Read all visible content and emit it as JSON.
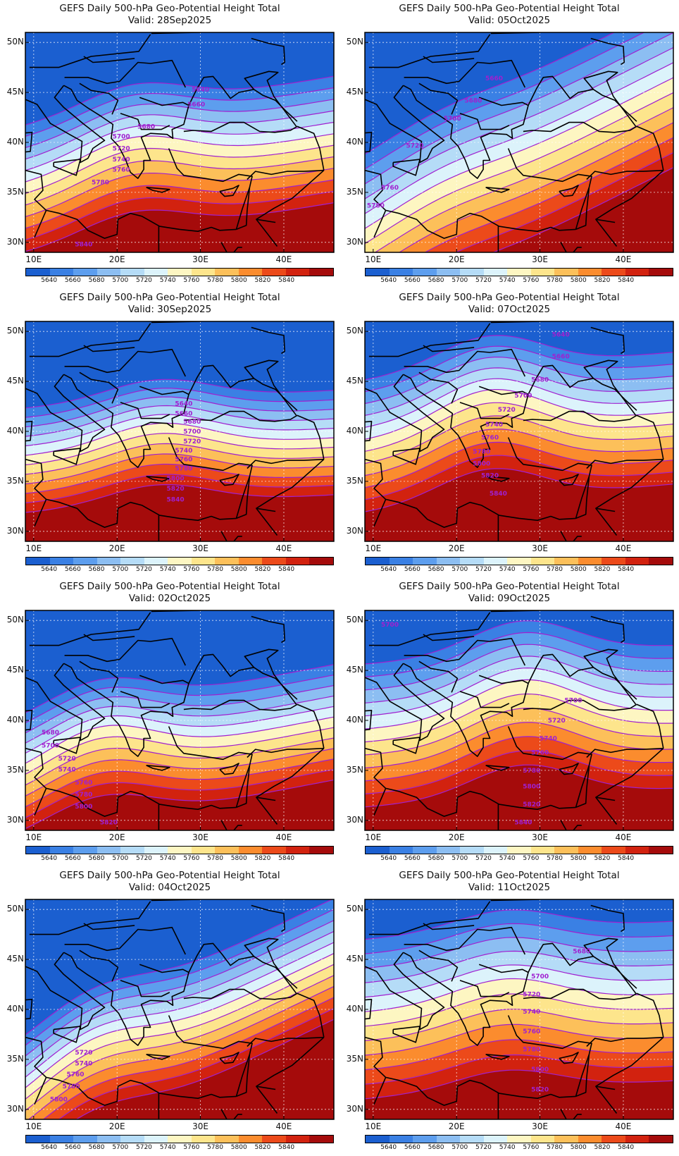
{
  "colorbar": {
    "levels": [
      "5640",
      "5660",
      "5680",
      "5700",
      "5720",
      "5740",
      "5760",
      "5780",
      "5800",
      "5820",
      "5840"
    ],
    "colors": [
      "#1b5fd0",
      "#3a80e4",
      "#5d9eee",
      "#8cbef2",
      "#b5dcf7",
      "#dcf3fb",
      "#fdf6c2",
      "#fde58c",
      "#fcc05a",
      "#fb8c2e",
      "#ec4a1a",
      "#d2220f",
      "#a50b0b"
    ]
  },
  "axes": {
    "lat_labels": [
      "50N",
      "45N",
      "40N",
      "35N",
      "30N"
    ],
    "lat_values": [
      50,
      45,
      40,
      35,
      30
    ],
    "lon_labels": [
      "10E",
      "20E",
      "30E",
      "40E"
    ],
    "lon_values": [
      10,
      20,
      30,
      40
    ],
    "lon_range": [
      9,
      46
    ],
    "lat_range": [
      29,
      51
    ]
  },
  "contour_color": "#a020d0",
  "panels": [
    {
      "title": "GEFS Daily 500-hPa Geo-Potential Height Total",
      "valid": "Valid: 28Sep2025",
      "trough_lon": 22,
      "trough_strength": 3,
      "base_lat": 38.2,
      "tilt": 0.14,
      "spacing": 1.15,
      "labels": [
        {
          "value": "5640",
          "lon": 30,
          "lat": 45.3
        },
        {
          "value": "5660",
          "lon": 29.5,
          "lat": 43.8
        },
        {
          "value": "5680",
          "lon": 23.5,
          "lat": 41.6
        },
        {
          "value": "5700",
          "lon": 20.5,
          "lat": 40.6
        },
        {
          "value": "5720",
          "lon": 20.5,
          "lat": 39.4
        },
        {
          "value": "5740",
          "lon": 20.5,
          "lat": 38.3
        },
        {
          "value": "5760",
          "lon": 20.5,
          "lat": 37.3
        },
        {
          "value": "5780",
          "lon": 18,
          "lat": 36
        },
        {
          "value": "5840",
          "lon": 16,
          "lat": 29.8
        }
      ]
    },
    {
      "title": "GEFS Daily 500-hPa Geo-Potential Height Total",
      "valid": "Valid: 05Oct2025",
      "trough_lon": 18,
      "trough_strength": 1.2,
      "base_lat": 38.5,
      "tilt": 0.42,
      "spacing": 1.5,
      "labels": [
        {
          "value": "5660",
          "lon": 24.5,
          "lat": 46.4
        },
        {
          "value": "5680",
          "lon": 22,
          "lat": 44.2
        },
        {
          "value": "5700",
          "lon": 19.5,
          "lat": 42.4
        },
        {
          "value": "5720",
          "lon": 15,
          "lat": 39.7
        },
        {
          "value": "5760",
          "lon": 12,
          "lat": 35.5
        },
        {
          "value": "5780",
          "lon": 10.3,
          "lat": 33.7
        }
      ]
    },
    {
      "title": "GEFS Daily 500-hPa Geo-Potential Height Total",
      "valid": "Valid: 30Sep2025",
      "trough_lon": 25,
      "trough_strength": 2.5,
      "base_lat": 38.4,
      "tilt": 0.05,
      "spacing": 0.95,
      "labels": [
        {
          "value": "5640",
          "lon": 28,
          "lat": 42.8
        },
        {
          "value": "5660",
          "lon": 28,
          "lat": 41.8
        },
        {
          "value": "5680",
          "lon": 29,
          "lat": 41
        },
        {
          "value": "5700",
          "lon": 29,
          "lat": 40
        },
        {
          "value": "5720",
          "lon": 29,
          "lat": 39
        },
        {
          "value": "5740",
          "lon": 28,
          "lat": 38.1
        },
        {
          "value": "5760",
          "lon": 28,
          "lat": 37.2
        },
        {
          "value": "5780",
          "lon": 28,
          "lat": 36.3
        },
        {
          "value": "5800",
          "lon": 27,
          "lat": 35.3
        },
        {
          "value": "5820",
          "lon": 27,
          "lat": 34.3
        },
        {
          "value": "5840",
          "lon": 27,
          "lat": 33.2
        }
      ]
    },
    {
      "title": "GEFS Daily 500-hPa Geo-Potential Height Total",
      "valid": "Valid: 07Oct2025",
      "trough_lon": 24,
      "trough_strength": 4,
      "base_lat": 40.4,
      "tilt": 0.08,
      "spacing": 1.2,
      "labels": [
        {
          "value": "5640",
          "lon": 32.5,
          "lat": 49.7
        },
        {
          "value": "5660",
          "lon": 32.5,
          "lat": 47.5
        },
        {
          "value": "5680",
          "lon": 30,
          "lat": 45.2
        },
        {
          "value": "5700",
          "lon": 28,
          "lat": 43.6
        },
        {
          "value": "5720",
          "lon": 26,
          "lat": 42.2
        },
        {
          "value": "5740",
          "lon": 24.5,
          "lat": 40.7
        },
        {
          "value": "5760",
          "lon": 24,
          "lat": 39.4
        },
        {
          "value": "5780",
          "lon": 23,
          "lat": 38
        },
        {
          "value": "5800",
          "lon": 23,
          "lat": 36.8
        },
        {
          "value": "5820",
          "lon": 24,
          "lat": 35.6
        },
        {
          "value": "5840",
          "lon": 25,
          "lat": 33.8
        }
      ]
    },
    {
      "title": "GEFS Daily 500-hPa Geo-Potential Height Total",
      "valid": "Valid: 02Oct2025",
      "trough_lon": 18,
      "trough_strength": 3.5,
      "base_lat": 37.3,
      "tilt": 0.16,
      "spacing": 1.05,
      "labels": [
        {
          "value": "5680",
          "lon": 12,
          "lat": 38.8
        },
        {
          "value": "5700",
          "lon": 12,
          "lat": 37.5
        },
        {
          "value": "5720",
          "lon": 14,
          "lat": 36.2
        },
        {
          "value": "5740",
          "lon": 14,
          "lat": 35.1
        },
        {
          "value": "5760",
          "lon": 16,
          "lat": 33.8
        },
        {
          "value": "5780",
          "lon": 16,
          "lat": 32.6
        },
        {
          "value": "5800",
          "lon": 16,
          "lat": 31.4
        },
        {
          "value": "5820",
          "lon": 19,
          "lat": 29.8
        }
      ]
    },
    {
      "title": "GEFS Daily 500-hPa Geo-Potential Height Total",
      "valid": "Valid: 09Oct2025",
      "trough_lon": 28,
      "trough_strength": 4,
      "base_lat": 40,
      "tilt": 0.05,
      "spacing": 1.3,
      "labels": [
        {
          "value": "5700",
          "lon": 12,
          "lat": 49.6
        },
        {
          "value": "5700",
          "lon": 34,
          "lat": 42
        },
        {
          "value": "5720",
          "lon": 32,
          "lat": 40
        },
        {
          "value": "5740",
          "lon": 31,
          "lat": 38.2
        },
        {
          "value": "5760",
          "lon": 30,
          "lat": 36.8
        },
        {
          "value": "5780",
          "lon": 29,
          "lat": 35
        },
        {
          "value": "5800",
          "lon": 29,
          "lat": 33.4
        },
        {
          "value": "5820",
          "lon": 29,
          "lat": 31.6
        },
        {
          "value": "5840",
          "lon": 28,
          "lat": 29.8
        }
      ]
    },
    {
      "title": "GEFS Daily 500-hPa Geo-Potential Height Total",
      "valid": "Valid: 04Oct2025",
      "trough_lon": 17,
      "trough_strength": 3,
      "base_lat": 38,
      "tilt": 0.4,
      "spacing": 1.1,
      "labels": [
        {
          "value": "5720",
          "lon": 16,
          "lat": 35.7
        },
        {
          "value": "5740",
          "lon": 16,
          "lat": 34.6
        },
        {
          "value": "5760",
          "lon": 15,
          "lat": 33.5
        },
        {
          "value": "5780",
          "lon": 14.5,
          "lat": 32.3
        },
        {
          "value": "5800",
          "lon": 13,
          "lat": 31
        }
      ]
    },
    {
      "title": "GEFS Daily 500-hPa Geo-Potential Height Total",
      "valid": "Valid: 11Oct2025",
      "trough_lon": 26,
      "trough_strength": 2.5,
      "base_lat": 40.6,
      "tilt": 0.05,
      "spacing": 1.45,
      "labels": [
        {
          "value": "5680",
          "lon": 35,
          "lat": 45.8
        },
        {
          "value": "5700",
          "lon": 30,
          "lat": 43.3
        },
        {
          "value": "5720",
          "lon": 29,
          "lat": 41.5
        },
        {
          "value": "5740",
          "lon": 29,
          "lat": 39.8
        },
        {
          "value": "5760",
          "lon": 29,
          "lat": 37.8
        },
        {
          "value": "5780",
          "lon": 29,
          "lat": 36
        },
        {
          "value": "5800",
          "lon": 30,
          "lat": 34
        },
        {
          "value": "5820",
          "lon": 30,
          "lat": 32
        }
      ]
    }
  ]
}
